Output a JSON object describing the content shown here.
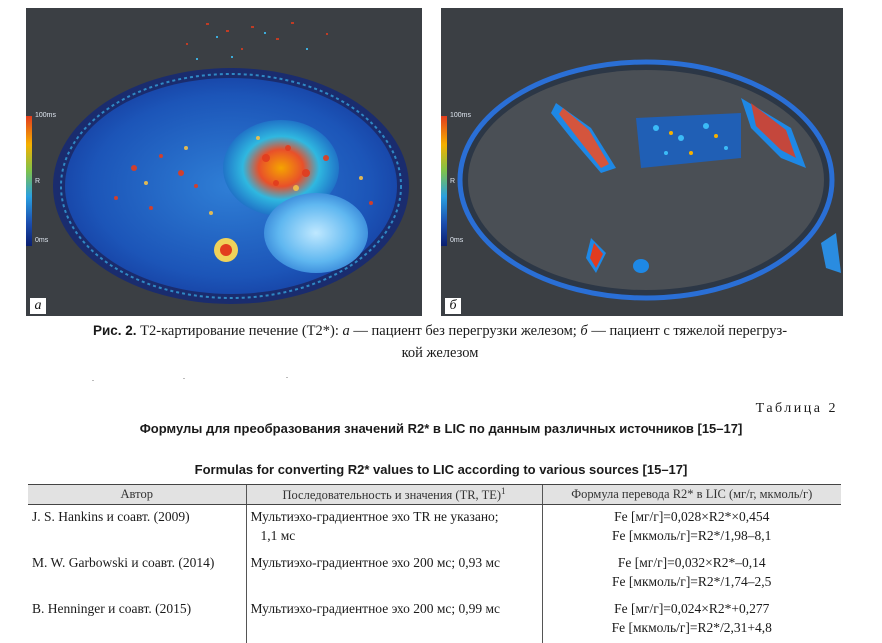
{
  "figure": {
    "panels": [
      {
        "letter": "a",
        "scale_top": "100ms",
        "scale_mid": "R",
        "scale_bottom": "0ms",
        "description_icon": "mri-t2-map-no-iron-overload"
      },
      {
        "letter": "б",
        "scale_top": "100ms",
        "scale_mid": "R",
        "scale_bottom": "0ms",
        "description_icon": "mri-t2-map-severe-iron-overload"
      }
    ],
    "caption": {
      "label": "Рис. 2.",
      "text_1": " T2-картирование печение (T2*): ",
      "a": "а",
      "text_2": " — пациент без перегрузки железом; ",
      "b": "б",
      "text_3": " — пациент с тяжелой перегруз-",
      "line2": "кой железом"
    }
  },
  "table": {
    "number": "Таблица 2",
    "title_ru": "Формулы для преобразования значений R2* в LIC по данным различных источников [15–17]",
    "title_en": "Formulas for converting R2* values to LIC according to various sources [15–17]",
    "headers": {
      "author": "Автор",
      "sequence": "Последовательность и значения (TR, TE)",
      "sequence_sup": "1",
      "formula": "Формула перевода R2* в LIC (мг/г, мкмоль/г)"
    },
    "rows": [
      {
        "author": "J. S. Hankins и соавт. (2009)",
        "sequence_1": "Мультиэхо-градиентное эхо TR не указано;",
        "sequence_2": "1,1 мс",
        "formula_1": "Fe [мг/г]=0,028×R2*×0,454",
        "formula_2": "Fe [мкмоль/г]=R2*/1,98–8,1"
      },
      {
        "author": "M. W. Garbowski и соавт. (2014)",
        "sequence_1": "Мультиэхо-градиентное эхо 200 мс; 0,93 мс",
        "sequence_2": "",
        "formula_1": "Fe [мг/г]=0,032×R2*–0,14",
        "formula_2": "Fe [мкмоль/г]=R2*/1,74–2,5"
      },
      {
        "author": "B. Henninger и соавт. (2015)",
        "sequence_1": "Мультиэхо-градиентное эхо 200 мс; 0,99 мс",
        "sequence_2": "",
        "formula_1": "Fe [мг/г]=0,024×R2*+0,277",
        "formula_2": "Fe [мкмоль/г]=R2*/2,31+4,8"
      }
    ]
  }
}
